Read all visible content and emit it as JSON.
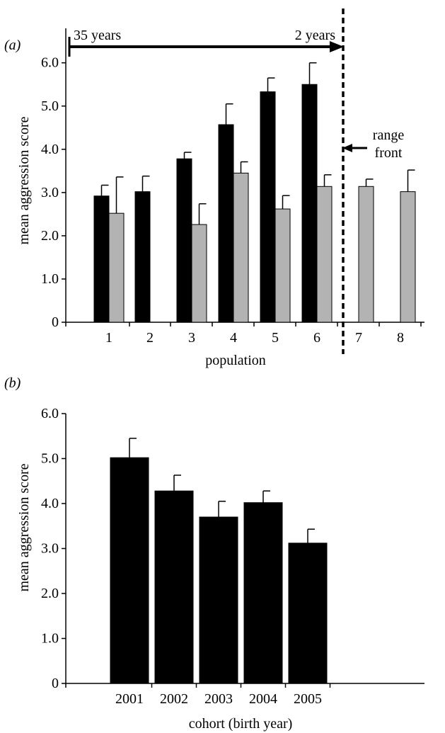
{
  "chart_data": [
    {
      "panel_label": "(a)",
      "type": "bar",
      "xlabel": "population",
      "ylabel": "mean aggression score",
      "ylim": [
        0,
        6.5
      ],
      "yticks": [
        "0",
        "1.0",
        "2.0",
        "3.0",
        "4.0",
        "5.0",
        "6.0"
      ],
      "categories": [
        "1",
        "2",
        "3",
        "4",
        "5",
        "6",
        "7",
        "8"
      ],
      "series": [
        {
          "color": "#000000",
          "values": [
            2.92,
            3.02,
            3.78,
            4.57,
            5.33,
            5.5,
            null,
            null
          ],
          "errors": [
            0.25,
            0.36,
            0.15,
            0.48,
            0.32,
            0.5,
            null,
            null
          ]
        },
        {
          "color": "#b3b3b3",
          "values": [
            2.52,
            null,
            2.26,
            3.45,
            2.62,
            3.14,
            3.14,
            3.02
          ],
          "errors": [
            0.84,
            null,
            0.48,
            0.26,
            0.31,
            0.27,
            0.17,
            0.5
          ]
        }
      ],
      "annotations": {
        "arrow_left_label": "35 years",
        "arrow_right_label": "2 years",
        "range_front_line1": "range",
        "range_front_line2": "front"
      }
    },
    {
      "panel_label": "(b)",
      "type": "bar",
      "xlabel": "cohort (birth year)",
      "ylabel": "mean aggression score",
      "ylim": [
        0,
        6.0
      ],
      "yticks": [
        "0",
        "1.0",
        "2.0",
        "3.0",
        "4.0",
        "5.0",
        "6.0"
      ],
      "categories": [
        "2001",
        "2002",
        "2003",
        "2004",
        "2005"
      ],
      "series": [
        {
          "color": "#000000",
          "values": [
            5.02,
            4.28,
            3.7,
            4.02,
            3.12
          ],
          "errors": [
            0.43,
            0.35,
            0.35,
            0.26,
            0.31
          ]
        }
      ]
    }
  ]
}
